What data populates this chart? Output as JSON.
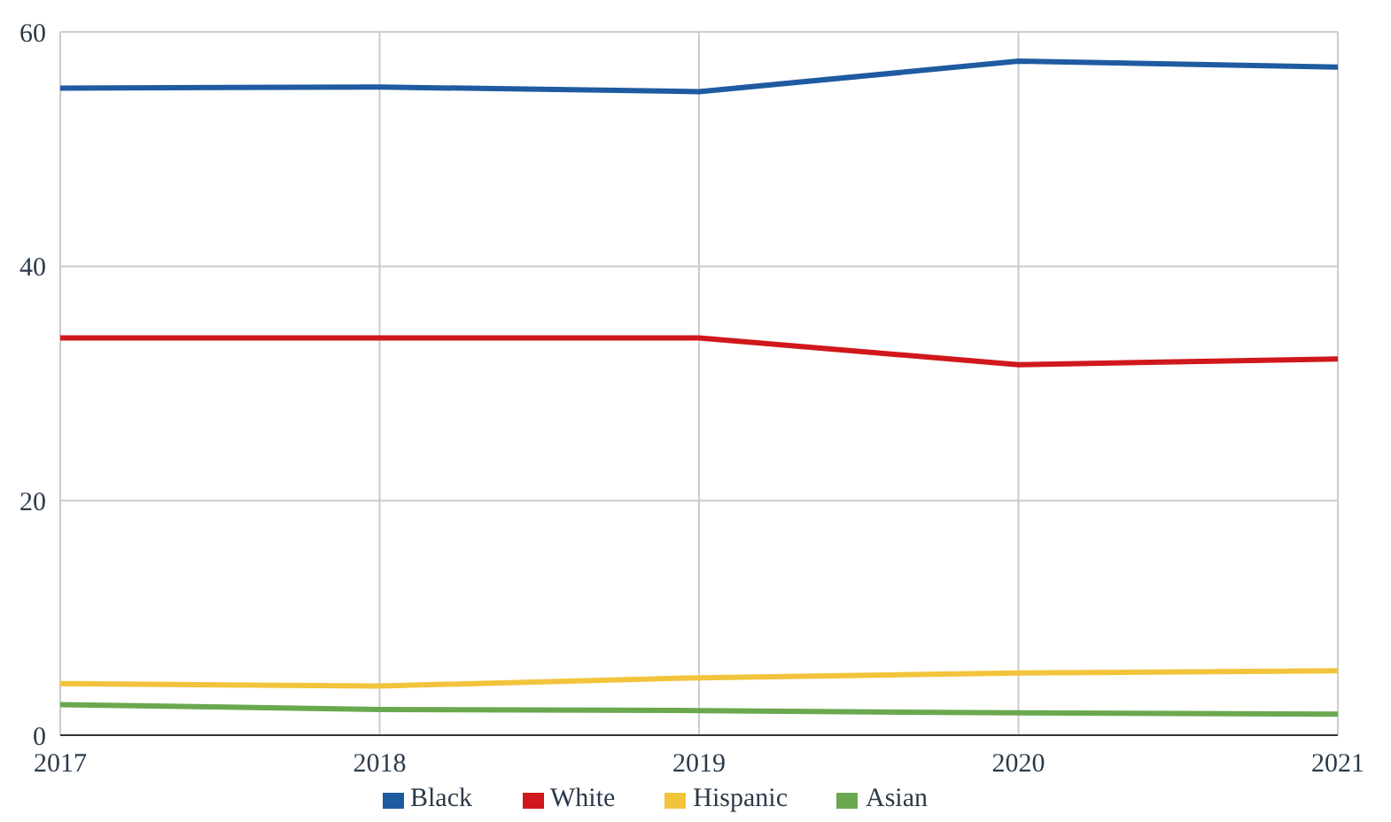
{
  "chart_data": {
    "type": "line",
    "x": [
      2017,
      2018,
      2019,
      2020,
      2021
    ],
    "xlim": [
      2017,
      2021
    ],
    "xticks": [
      2017,
      2018,
      2019,
      2020,
      2021
    ],
    "ylim": [
      0,
      60
    ],
    "yticks": [
      0,
      20,
      40,
      60
    ],
    "grid": true,
    "legend": "bottom",
    "marker": "none",
    "line_style": "solid",
    "series": [
      {
        "name": "Black",
        "color": "#1f5ba0",
        "values": [
          55.2,
          55.3,
          54.9,
          57.5,
          57.0
        ]
      },
      {
        "name": "White",
        "color": "#d0181c",
        "values": [
          33.9,
          33.9,
          33.9,
          31.6,
          32.1
        ]
      },
      {
        "name": "Hispanic",
        "color": "#f2c43c",
        "values": [
          4.4,
          4.2,
          4.9,
          5.3,
          5.5
        ]
      },
      {
        "name": "Asian",
        "color": "#6aa84f",
        "values": [
          2.6,
          2.2,
          2.1,
          1.9,
          1.8
        ]
      }
    ]
  }
}
